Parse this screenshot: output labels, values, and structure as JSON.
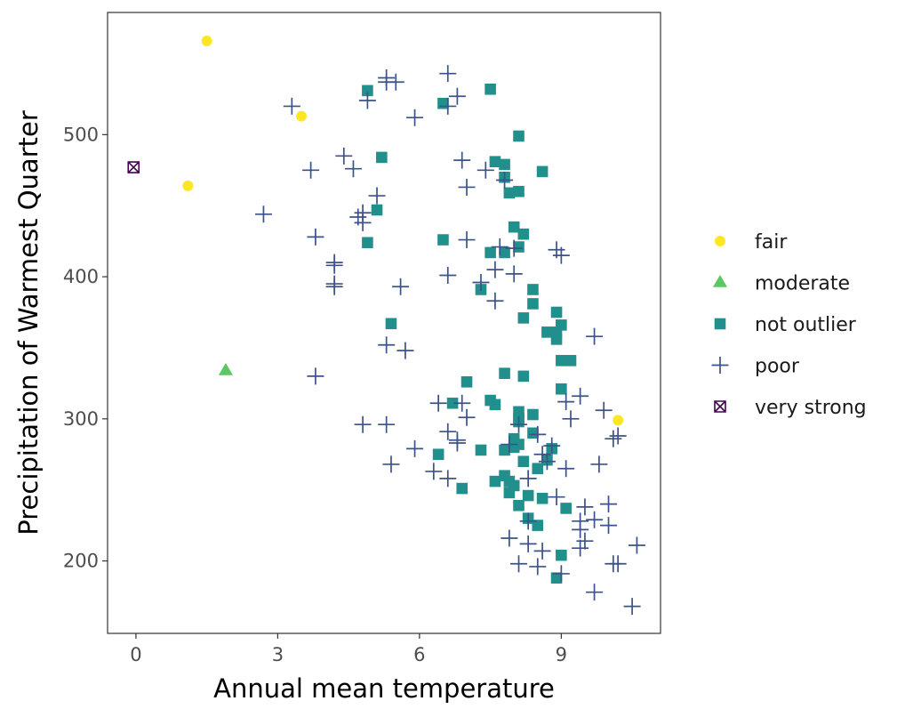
{
  "chart_data": {
    "type": "scatter",
    "title": "",
    "xlabel": "Annual mean temperature",
    "ylabel": "Precipitation of Warmest Quarter",
    "xlim": [
      -0.6,
      11.1
    ],
    "ylim": [
      149,
      586
    ],
    "xticks": [
      0,
      3,
      6,
      9
    ],
    "yticks": [
      200,
      300,
      400,
      500
    ],
    "grid": false,
    "legend_position": "right",
    "series": [
      {
        "name": "fair",
        "marker": "circle",
        "color": "#FDE725",
        "points": [
          [
            1.5,
            566
          ],
          [
            3.5,
            513
          ],
          [
            1.1,
            464
          ],
          [
            10.2,
            299
          ]
        ]
      },
      {
        "name": "moderate",
        "marker": "triangle",
        "color": "#5DC863",
        "points": [
          [
            1.9,
            334
          ]
        ]
      },
      {
        "name": "not outlier",
        "marker": "square",
        "color": "#21908C",
        "points": [
          [
            4.9,
            531
          ],
          [
            7.5,
            532
          ],
          [
            6.5,
            522
          ],
          [
            8.1,
            499
          ],
          [
            5.2,
            484
          ],
          [
            7.6,
            481
          ],
          [
            7.8,
            479
          ],
          [
            8.6,
            474
          ],
          [
            7.8,
            470
          ],
          [
            7.9,
            459
          ],
          [
            8.1,
            460
          ],
          [
            5.1,
            447
          ],
          [
            8.0,
            435
          ],
          [
            8.2,
            430
          ],
          [
            6.5,
            426
          ],
          [
            4.9,
            424
          ],
          [
            8.1,
            421
          ],
          [
            7.5,
            417
          ],
          [
            7.8,
            417
          ],
          [
            8.4,
            391
          ],
          [
            7.3,
            391
          ],
          [
            8.4,
            381
          ],
          [
            8.9,
            375
          ],
          [
            8.2,
            371
          ],
          [
            5.4,
            367
          ],
          [
            9.0,
            366
          ],
          [
            8.7,
            361
          ],
          [
            8.9,
            361
          ],
          [
            8.9,
            356
          ],
          [
            9.0,
            341
          ],
          [
            9.2,
            341
          ],
          [
            7.8,
            332
          ],
          [
            8.2,
            330
          ],
          [
            7.0,
            326
          ],
          [
            9.0,
            321
          ],
          [
            7.5,
            313
          ],
          [
            6.7,
            311
          ],
          [
            7.6,
            310
          ],
          [
            8.1,
            305
          ],
          [
            8.4,
            303
          ],
          [
            8.1,
            300
          ],
          [
            8.1,
            298
          ],
          [
            8.4,
            290
          ],
          [
            8.0,
            286
          ],
          [
            8.1,
            282
          ],
          [
            8.8,
            279
          ],
          [
            7.3,
            278
          ],
          [
            8.0,
            280
          ],
          [
            7.8,
            278
          ],
          [
            6.4,
            275
          ],
          [
            8.7,
            271
          ],
          [
            8.2,
            270
          ],
          [
            8.5,
            265
          ],
          [
            7.8,
            260
          ],
          [
            7.9,
            256
          ],
          [
            7.6,
            256
          ],
          [
            8.0,
            253
          ],
          [
            6.9,
            251
          ],
          [
            7.9,
            248
          ],
          [
            8.3,
            246
          ],
          [
            8.6,
            244
          ],
          [
            8.1,
            239
          ],
          [
            9.1,
            237
          ],
          [
            8.3,
            230
          ],
          [
            8.5,
            225
          ],
          [
            9.0,
            204
          ],
          [
            8.9,
            188
          ]
        ]
      },
      {
        "name": "poor",
        "marker": "plus",
        "color": "#3B528B",
        "points": [
          [
            5.3,
            540
          ],
          [
            6.6,
            543
          ],
          [
            5.3,
            537
          ],
          [
            5.5,
            537
          ],
          [
            6.6,
            520
          ],
          [
            6.8,
            527
          ],
          [
            3.3,
            520
          ],
          [
            4.9,
            524
          ],
          [
            5.9,
            512
          ],
          [
            4.4,
            485
          ],
          [
            4.6,
            476
          ],
          [
            3.7,
            475
          ],
          [
            6.9,
            482
          ],
          [
            7.4,
            475
          ],
          [
            7.0,
            463
          ],
          [
            7.8,
            468
          ],
          [
            5.1,
            457
          ],
          [
            2.7,
            444
          ],
          [
            4.7,
            442
          ],
          [
            4.8,
            438
          ],
          [
            4.8,
            445
          ],
          [
            3.8,
            428
          ],
          [
            7.0,
            426
          ],
          [
            7.7,
            421
          ],
          [
            8.0,
            420
          ],
          [
            4.2,
            410
          ],
          [
            4.2,
            408
          ],
          [
            8.9,
            419
          ],
          [
            9.0,
            415
          ],
          [
            6.6,
            401
          ],
          [
            7.6,
            405
          ],
          [
            8.0,
            402
          ],
          [
            4.2,
            395
          ],
          [
            4.2,
            393
          ],
          [
            5.6,
            393
          ],
          [
            7.3,
            396
          ],
          [
            7.6,
            383
          ],
          [
            9.7,
            358
          ],
          [
            5.3,
            352
          ],
          [
            5.7,
            348
          ],
          [
            3.8,
            330
          ],
          [
            9.4,
            316
          ],
          [
            9.1,
            312
          ],
          [
            6.4,
            311
          ],
          [
            6.9,
            311
          ],
          [
            9.9,
            306
          ],
          [
            7.0,
            301
          ],
          [
            9.2,
            300
          ],
          [
            8.1,
            296
          ],
          [
            4.8,
            296
          ],
          [
            5.3,
            296
          ],
          [
            6.6,
            291
          ],
          [
            8.5,
            289
          ],
          [
            10.1,
            286
          ],
          [
            10.2,
            288
          ],
          [
            6.8,
            285
          ],
          [
            6.8,
            283
          ],
          [
            7.9,
            282
          ],
          [
            8.8,
            281
          ],
          [
            5.9,
            279
          ],
          [
            8.6,
            275
          ],
          [
            8.7,
            270
          ],
          [
            5.4,
            268
          ],
          [
            9.8,
            268
          ],
          [
            9.1,
            265
          ],
          [
            6.3,
            263
          ],
          [
            6.6,
            258
          ],
          [
            8.3,
            258
          ],
          [
            8.9,
            245
          ],
          [
            9.5,
            238
          ],
          [
            10.0,
            240
          ],
          [
            9.4,
            228
          ],
          [
            9.7,
            229
          ],
          [
            8.3,
            228
          ],
          [
            9.4,
            222
          ],
          [
            10.0,
            225
          ],
          [
            9.5,
            214
          ],
          [
            7.9,
            216
          ],
          [
            8.3,
            212
          ],
          [
            9.4,
            209
          ],
          [
            8.6,
            207
          ],
          [
            10.6,
            211
          ],
          [
            8.1,
            198
          ],
          [
            8.5,
            196
          ],
          [
            10.1,
            198
          ],
          [
            10.2,
            198
          ],
          [
            9.0,
            191
          ],
          [
            9.7,
            178
          ],
          [
            10.5,
            168
          ]
        ]
      },
      {
        "name": "very strong",
        "marker": "square-cross",
        "color": "#440154",
        "points": [
          [
            -0.05,
            477
          ]
        ]
      }
    ]
  }
}
